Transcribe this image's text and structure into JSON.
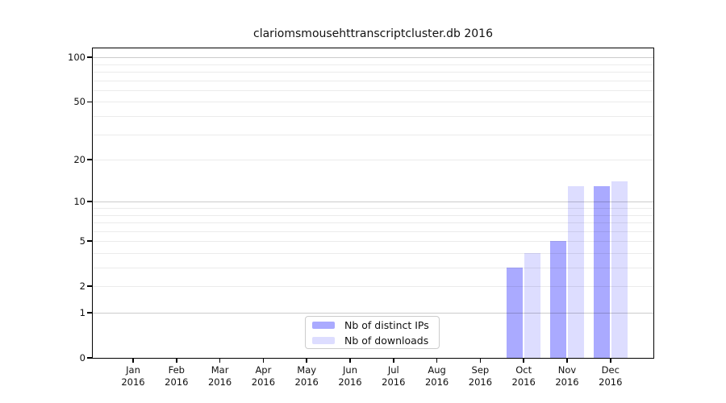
{
  "title": "clariomsmousehttranscriptcluster.db 2016",
  "chart_data": {
    "type": "bar",
    "title": "clariomsmousehttranscriptcluster.db 2016",
    "categories": [
      {
        "month": "Jan",
        "year": "2016"
      },
      {
        "month": "Feb",
        "year": "2016"
      },
      {
        "month": "Mar",
        "year": "2016"
      },
      {
        "month": "Apr",
        "year": "2016"
      },
      {
        "month": "May",
        "year": "2016"
      },
      {
        "month": "Jun",
        "year": "2016"
      },
      {
        "month": "Jul",
        "year": "2016"
      },
      {
        "month": "Aug",
        "year": "2016"
      },
      {
        "month": "Sep",
        "year": "2016"
      },
      {
        "month": "Oct",
        "year": "2016"
      },
      {
        "month": "Nov",
        "year": "2016"
      },
      {
        "month": "Dec",
        "year": "2016"
      }
    ],
    "series": [
      {
        "name": "Nb of distinct IPs",
        "color": "#aaaaff",
        "values": [
          0,
          0,
          0,
          0,
          0,
          0,
          0,
          0,
          0,
          3,
          5,
          13
        ]
      },
      {
        "name": "Nb of downloads",
        "color": "#ddddff",
        "values": [
          0,
          0,
          0,
          0,
          0,
          0,
          0,
          0,
          0,
          4,
          13,
          14
        ]
      }
    ],
    "y_scale": "log1p",
    "y_ticks": [
      0,
      1,
      2,
      5,
      10,
      20,
      50,
      100
    ],
    "y_minor_gridlines": [
      2,
      3,
      4,
      5,
      6,
      7,
      8,
      9,
      20,
      30,
      40,
      50,
      60,
      70,
      80,
      90
    ],
    "y_major_gridlines": [
      1,
      10,
      100
    ],
    "ylim": [
      0,
      115
    ],
    "xlabel": "",
    "ylabel": "",
    "grid": true,
    "legend_position": "bottom-center"
  },
  "colors": {
    "bar_distinct_ips": "#aaaaff",
    "bar_downloads": "#ddddff",
    "axis": "#000000",
    "legend_border": "#cccccc",
    "background": "#ffffff"
  }
}
